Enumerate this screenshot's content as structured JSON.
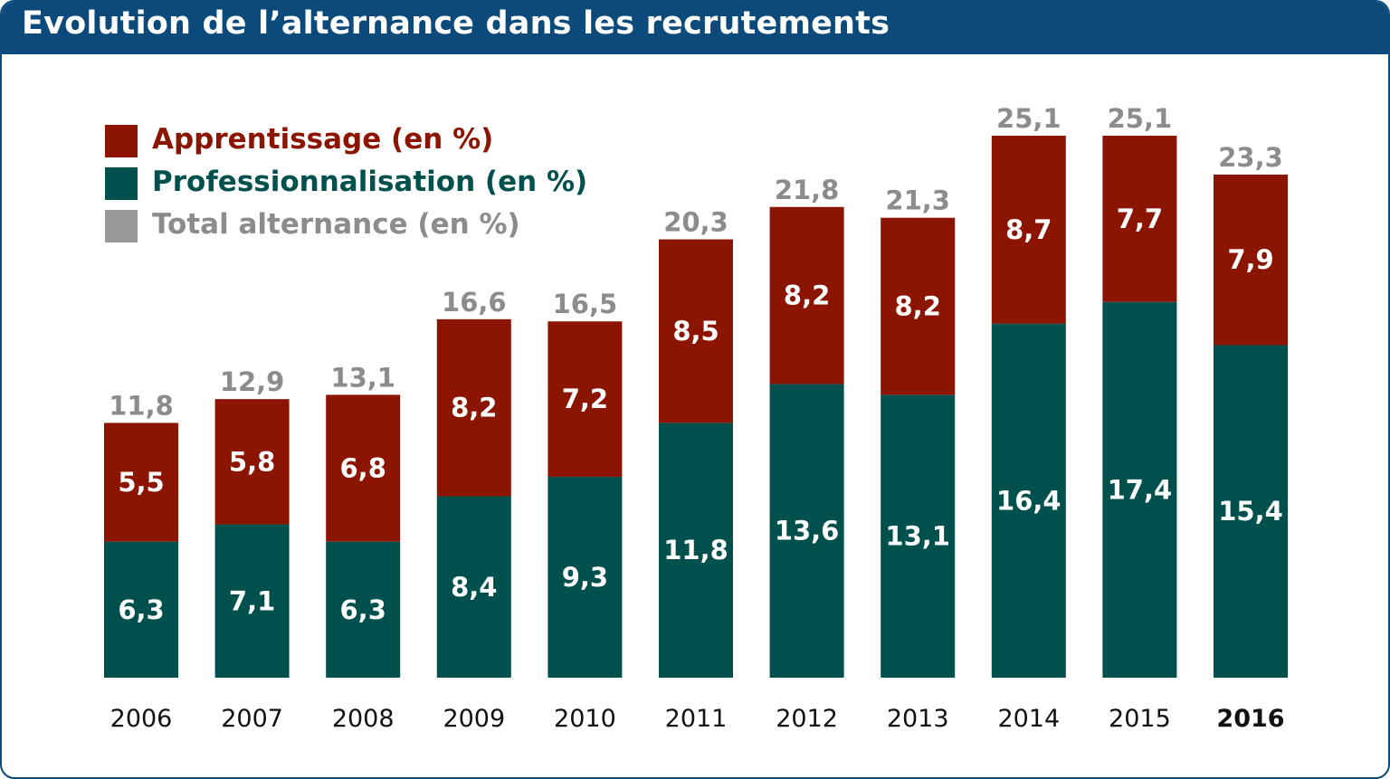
{
  "header": {
    "title": "Evolution de l’alternance dans les recrutements"
  },
  "legend": {
    "items": [
      {
        "label": "Apprentissage (en %)",
        "color": "#8b1500"
      },
      {
        "label": "Professionnalisation (en %)",
        "color": "#00504d"
      },
      {
        "label": "Total alternance (en %)",
        "color": "#999999"
      }
    ]
  },
  "chart_data": {
    "type": "bar",
    "stacked": true,
    "categories": [
      "2006",
      "2007",
      "2008",
      "2009",
      "2010",
      "2011",
      "2012",
      "2013",
      "2014",
      "2015",
      "2016"
    ],
    "highlight_category": "2016",
    "series": [
      {
        "name": "Professionnalisation (en %)",
        "color": "#00504d",
        "values": [
          6.3,
          7.1,
          6.3,
          8.4,
          9.3,
          11.8,
          13.6,
          13.1,
          16.4,
          17.4,
          15.4
        ]
      },
      {
        "name": "Apprentissage (en %)",
        "color": "#8b1500",
        "values": [
          5.5,
          5.8,
          6.8,
          8.2,
          7.2,
          8.5,
          8.2,
          8.2,
          8.7,
          7.7,
          7.9
        ]
      }
    ],
    "totals": {
      "name": "Total alternance (en %)",
      "color": "#999999",
      "values": [
        11.8,
        12.9,
        13.1,
        16.6,
        16.5,
        20.3,
        21.8,
        21.3,
        25.1,
        25.1,
        23.3
      ]
    },
    "value_labels": {
      "Professionnalisation": [
        "6,3",
        "7,1",
        "6,3",
        "8,4",
        "9,3",
        "11,8",
        "13,6",
        "13,1",
        "16,4",
        "17,4",
        "15,4"
      ],
      "Apprentissage": [
        "5,5",
        "5,8",
        "6,8",
        "8,2",
        "7,2",
        "8,5",
        "8,2",
        "8,2",
        "8,7",
        "7,7",
        "7,9"
      ],
      "Total": [
        "11,8",
        "12,9",
        "13,1",
        "16,6",
        "16,5",
        "20,3",
        "21,8",
        "21,3",
        "25,1",
        "25,1",
        "23,3"
      ]
    },
    "ylim": [
      0,
      25.1
    ],
    "grid": false,
    "legend_position": "top-left",
    "xlabel": "",
    "ylabel": ""
  }
}
